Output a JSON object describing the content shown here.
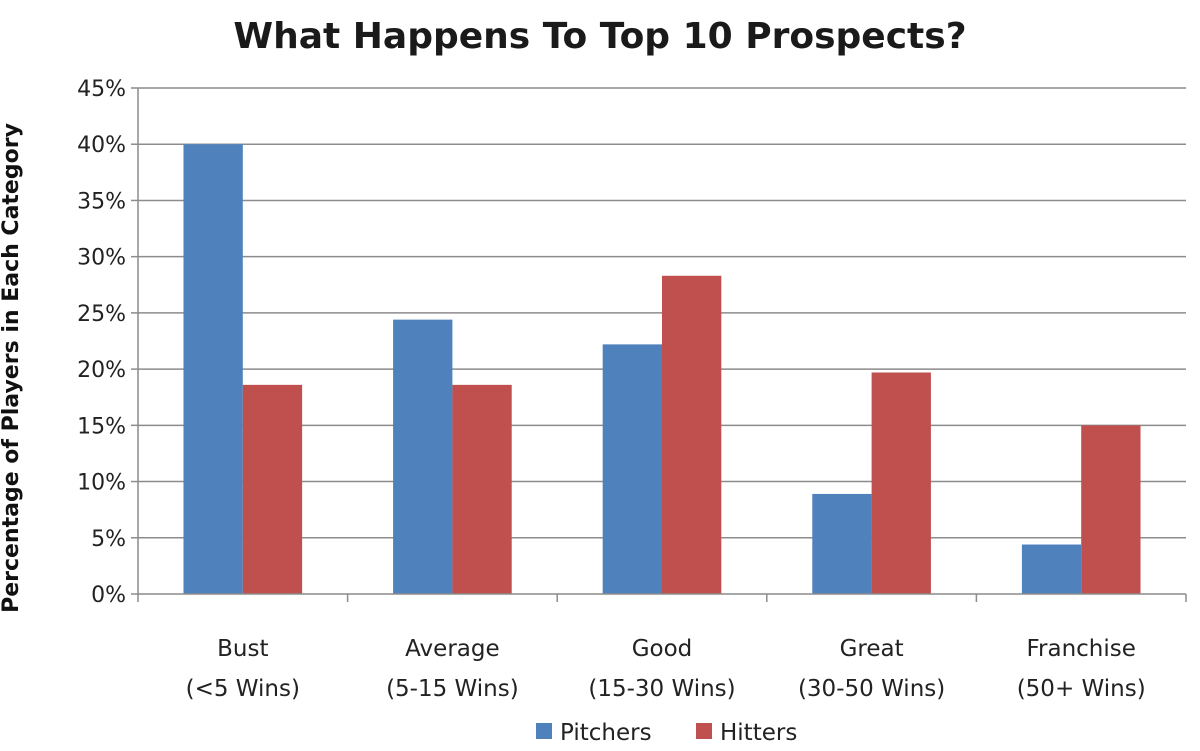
{
  "chart_data": {
    "type": "bar",
    "title": "What Happens To Top 10 Prospects?",
    "xlabel": "",
    "ylabel": "Percentage of Players in Each Category",
    "ylim": [
      0,
      45
    ],
    "yticks": [
      "0%",
      "5%",
      "10%",
      "15%",
      "20%",
      "25%",
      "30%",
      "35%",
      "40%",
      "45%"
    ],
    "grid": true,
    "legend_position": "bottom",
    "categories": [
      [
        "Bust",
        "(<5 Wins)"
      ],
      [
        "Average",
        "(5-15 Wins)"
      ],
      [
        "Good",
        "(15-30 Wins)"
      ],
      [
        "Great",
        "(30-50 Wins)"
      ],
      [
        "Franchise",
        "(50+ Wins)"
      ]
    ],
    "series": [
      {
        "name": "Pitchers",
        "color": "#4f81bd",
        "values": [
          40.0,
          24.4,
          22.2,
          8.9,
          4.4
        ]
      },
      {
        "name": "Hitters",
        "color": "#c0504d",
        "values": [
          18.6,
          18.6,
          28.3,
          19.7,
          15.0
        ]
      }
    ]
  }
}
